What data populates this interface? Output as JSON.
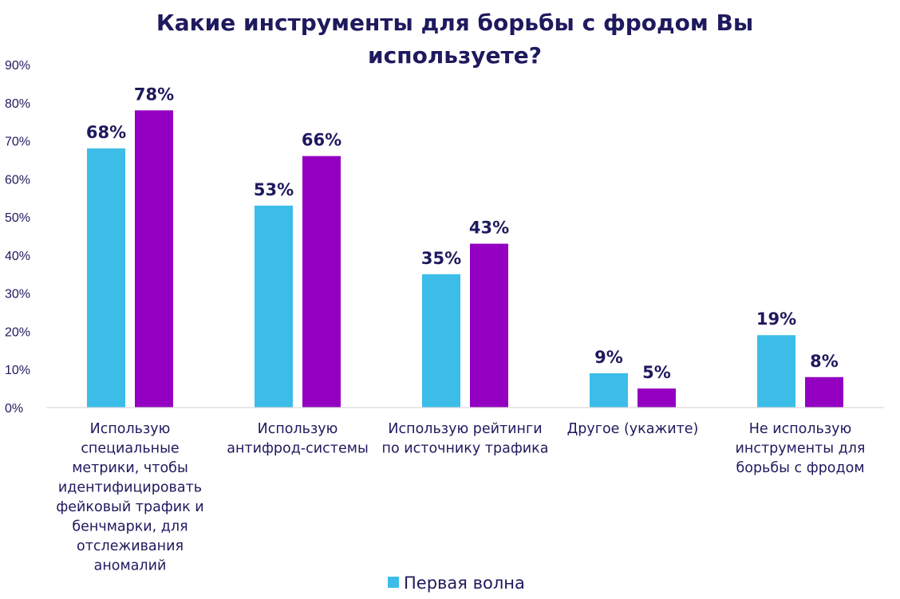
{
  "chart_data": {
    "type": "bar",
    "title_lines": [
      "Какие инструменты для борьбы с фродом Вы",
      "используете?"
    ],
    "categories": [
      [
        "Использую",
        "специальные",
        "метрики, чтобы",
        "идентифицировать",
        "фейковый трафик и",
        "бенчмарки, для",
        "отслеживания",
        "аномалий"
      ],
      [
        "Использую",
        "антифрод-системы"
      ],
      [
        "Использую рейтинги",
        "по источнику трафика"
      ],
      [
        "Другое (укажите)"
      ],
      [
        "Не использую",
        "инструменты для",
        "борьбы с фродом"
      ]
    ],
    "series": [
      {
        "name": "Первая волна",
        "color": "#3bbde8",
        "values": [
          68,
          53,
          35,
          9,
          19
        ],
        "labels": [
          "68%",
          "53%",
          "35%",
          "9%",
          "19%"
        ]
      },
      {
        "color": "#9400c2",
        "values": [
          78,
          66,
          43,
          5,
          8
        ],
        "labels": [
          "78%",
          "66%",
          "43%",
          "5%",
          "8%"
        ]
      }
    ],
    "ylim": [
      0,
      90
    ],
    "yticks": [
      0,
      10,
      20,
      30,
      40,
      50,
      60,
      70,
      80,
      90
    ],
    "ytick_labels": [
      "0%",
      "10%",
      "20%",
      "30%",
      "40%",
      "50%",
      "60%",
      "70%",
      "80%",
      "90%"
    ],
    "grid": false,
    "legend_position": "bottom-center",
    "text_color": "#1e1a5e",
    "axis_color": "#d9d9d9"
  }
}
